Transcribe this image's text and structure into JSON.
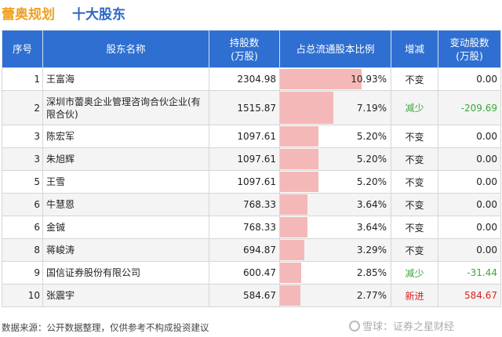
{
  "header": {
    "company": "蕾奥规划",
    "subtitle": "十大股东"
  },
  "columns": {
    "rank": "序号",
    "name": "股东名称",
    "holding": "持股数\n(万股)",
    "ratio": "占总流通股本比例",
    "change": "增减",
    "delta": "变动股数\n(万股)"
  },
  "colors": {
    "header_bg": "#2f6fd1",
    "bar": "#f5b8b8",
    "decrease": "#3aa838",
    "new_entry": "#e02020"
  },
  "rows": [
    {
      "rank": "1",
      "name": "王富海",
      "holding": "2304.98",
      "ratio": "10.93%",
      "ratio_value": 10.93,
      "change": "不变",
      "delta": "0.00",
      "status": "neutral"
    },
    {
      "rank": "2",
      "name": "深圳市蕾奥企业管理咨询合伙企业(有限合伙)",
      "holding": "1515.87",
      "ratio": "7.19%",
      "ratio_value": 7.19,
      "change": "减少",
      "delta": "-209.69",
      "status": "down"
    },
    {
      "rank": "3",
      "name": "陈宏军",
      "holding": "1097.61",
      "ratio": "5.20%",
      "ratio_value": 5.2,
      "change": "不变",
      "delta": "0.00",
      "status": "neutral"
    },
    {
      "rank": "3",
      "name": "朱旭辉",
      "holding": "1097.61",
      "ratio": "5.20%",
      "ratio_value": 5.2,
      "change": "不变",
      "delta": "0.00",
      "status": "neutral"
    },
    {
      "rank": "5",
      "name": "王雪",
      "holding": "1097.61",
      "ratio": "5.20%",
      "ratio_value": 5.2,
      "change": "不变",
      "delta": "0.00",
      "status": "neutral"
    },
    {
      "rank": "6",
      "name": "牛慧恩",
      "holding": "768.33",
      "ratio": "3.64%",
      "ratio_value": 3.64,
      "change": "不变",
      "delta": "0.00",
      "status": "neutral"
    },
    {
      "rank": "6",
      "name": "金铖",
      "holding": "768.33",
      "ratio": "3.64%",
      "ratio_value": 3.64,
      "change": "不变",
      "delta": "0.00",
      "status": "neutral"
    },
    {
      "rank": "8",
      "name": "蒋峻涛",
      "holding": "694.87",
      "ratio": "3.29%",
      "ratio_value": 3.29,
      "change": "不变",
      "delta": "0.00",
      "status": "neutral"
    },
    {
      "rank": "9",
      "name": "国信证券股份有限公司",
      "holding": "600.47",
      "ratio": "2.85%",
      "ratio_value": 2.85,
      "change": "减少",
      "delta": "-31.44",
      "status": "down"
    },
    {
      "rank": "10",
      "name": "张震宇",
      "holding": "584.67",
      "ratio": "2.77%",
      "ratio_value": 2.77,
      "change": "新进",
      "delta": "584.67",
      "status": "new"
    }
  ],
  "footer": {
    "source": "数据来源：公开数据整理，仅供参考不构成投资建议",
    "brand": "雪球：证券之星财经"
  }
}
